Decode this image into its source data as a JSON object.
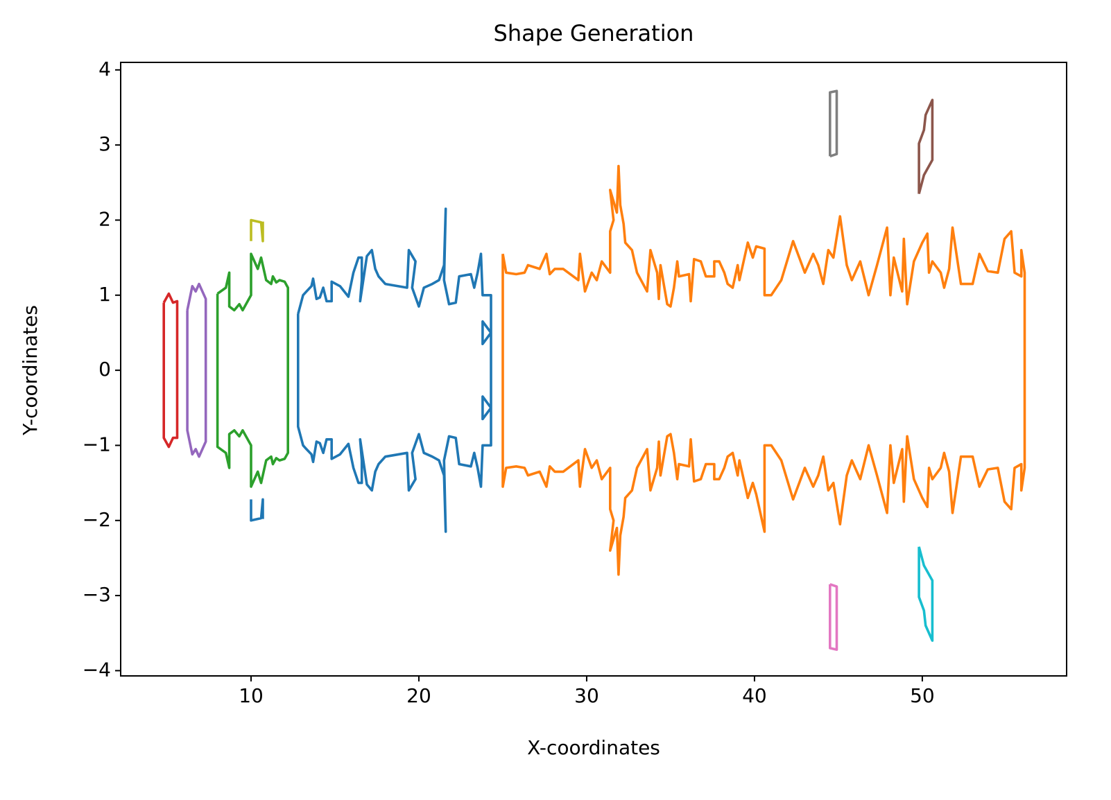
{
  "chart_data": {
    "type": "line",
    "title": "Shape Generation",
    "x_label": "X-coordinates",
    "y_label": "Y-coordinates",
    "xlim": [
      2.23,
      58.6
    ],
    "ylim": [
      -4.07,
      4.1
    ],
    "xticks": [
      10,
      20,
      30,
      40,
      50
    ],
    "yticks": [
      {
        "value": -4,
        "label": "−4"
      },
      {
        "value": -3,
        "label": "−3"
      },
      {
        "value": -2,
        "label": "−2"
      },
      {
        "value": -1,
        "label": "−1"
      },
      0,
      1,
      2,
      3,
      4
    ],
    "grid": false,
    "series": [
      {
        "color": "#1f77b4",
        "x": [
          12.8,
          13.1,
          13.3,
          13.6,
          13.7,
          13.9,
          14.1,
          14.3,
          14.5,
          14.8,
          14.8,
          15.3,
          15.8,
          16.1,
          16.4,
          16.6,
          16.6,
          16.5,
          16.9,
          17.2,
          17.4,
          17.6,
          18.0,
          19.3,
          19.4,
          19.8,
          19.6,
          20.0,
          20.3,
          20.8,
          21.2,
          21.5,
          21.6,
          21.5,
          21.8,
          22.2,
          22.4,
          23.1,
          23.3,
          23.5,
          23.7,
          23.8,
          24.3,
          24.3,
          23.8,
          23.8,
          24.3,
          24.3,
          23.8,
          23.8,
          24.3,
          24.3,
          23.8,
          23.7,
          23.5,
          23.3,
          23.1,
          22.4,
          22.2,
          21.8,
          21.5,
          21.6,
          21.5,
          21.2,
          20.8,
          20.3,
          20.0,
          19.6,
          19.8,
          19.4,
          19.3,
          18.0,
          17.6,
          17.4,
          17.2,
          16.9,
          16.5,
          16.6,
          16.6,
          16.4,
          16.1,
          15.8,
          15.3,
          14.8,
          14.8,
          14.5,
          14.3,
          14.1,
          13.9,
          13.7,
          13.6,
          13.3,
          13.1,
          12.8,
          12.8,
          null,
          10,
          10,
          10.6,
          10.7,
          10.7
        ],
        "values": [
          0.75,
          1.0,
          1.05,
          1.12,
          1.22,
          0.95,
          0.97,
          1.1,
          0.92,
          0.92,
          1.18,
          1.12,
          0.98,
          1.3,
          1.5,
          1.5,
          1.2,
          0.92,
          1.52,
          1.6,
          1.35,
          1.25,
          1.15,
          1.1,
          1.6,
          1.45,
          1.1,
          0.85,
          1.1,
          1.15,
          1.2,
          1.4,
          2.15,
          1.2,
          0.88,
          0.9,
          1.25,
          1.28,
          1.1,
          1.3,
          1.55,
          1.0,
          1.0,
          0.5,
          0.65,
          0.35,
          0.5,
          -0.5,
          -0.35,
          -0.65,
          -0.5,
          -1.0,
          -1.0,
          -1.55,
          -1.3,
          -1.1,
          -1.28,
          -1.25,
          -0.9,
          -0.88,
          -1.2,
          -2.15,
          -1.4,
          -1.2,
          -1.15,
          -1.1,
          -0.85,
          -1.1,
          -1.45,
          -1.6,
          -1.1,
          -1.15,
          -1.25,
          -1.35,
          -1.6,
          -1.52,
          -0.92,
          -1.2,
          -1.5,
          -1.5,
          -1.3,
          -0.98,
          -1.12,
          -1.18,
          -0.92,
          -0.92,
          -1.1,
          -0.97,
          -0.95,
          -1.22,
          -1.12,
          -1.05,
          -1.0,
          -0.75,
          0.75,
          null,
          -1.72,
          -2.0,
          -1.97,
          -1.72,
          -1.98
        ]
      },
      {
        "color": "#ff7f0e",
        "x": [
          25.0,
          25.2,
          25.8,
          26.3,
          26.5,
          27.2,
          27.6,
          27.8,
          28.1,
          28.6,
          29.5,
          29.6,
          29.9,
          30.3,
          30.6,
          30.9,
          31.4,
          31.4,
          31.6,
          31.4,
          31.8,
          31.9,
          32.0,
          32.2,
          32.3,
          32.7,
          33.0,
          33.6,
          33.8,
          34.2,
          34.3,
          34.4,
          34.8,
          35.0,
          35.2,
          35.4,
          35.5,
          36.1,
          36.2,
          36.4,
          36.8,
          37.1,
          37.6,
          37.6,
          37.9,
          38.2,
          38.4,
          38.7,
          39.0,
          39.1,
          39.6,
          39.9,
          40.1,
          40.6,
          40.6,
          41.0,
          41.6,
          42.3,
          42.7,
          43.0,
          43.5,
          43.8,
          44.1,
          44.4,
          44.7,
          45.1,
          45.5,
          45.8,
          46.3,
          46.8,
          47.3,
          47.9,
          48.1,
          48.3,
          48.8,
          48.9,
          49.1,
          49.5,
          50.0,
          50.3,
          50.4,
          50.6,
          51.1,
          51.3,
          51.6,
          51.8,
          52.3,
          53.0,
          53.4,
          53.9,
          54.5,
          54.9,
          55.3,
          55.5,
          55.9,
          55.9,
          56.1,
          56.1,
          55.9,
          55.9,
          55.5,
          55.3,
          54.9,
          54.5,
          53.9,
          53.4,
          53.0,
          52.3,
          51.8,
          51.6,
          51.3,
          51.1,
          50.6,
          50.4,
          50.3,
          50.0,
          49.5,
          49.1,
          48.9,
          48.8,
          48.3,
          48.1,
          47.9,
          47.3,
          46.8,
          46.3,
          45.8,
          45.5,
          45.1,
          44.7,
          44.4,
          44.1,
          43.8,
          43.5,
          43.0,
          42.7,
          42.3,
          41.6,
          41.0,
          40.6,
          40.6,
          40.1,
          39.9,
          39.6,
          39.1,
          39.0,
          38.7,
          38.4,
          38.2,
          37.9,
          37.6,
          37.6,
          37.1,
          36.8,
          36.4,
          36.2,
          36.1,
          35.5,
          35.4,
          35.2,
          35.0,
          34.8,
          34.4,
          34.3,
          34.2,
          33.8,
          33.6,
          33.0,
          32.7,
          32.3,
          32.2,
          32.0,
          31.9,
          31.8,
          31.4,
          31.6,
          31.4,
          31.4,
          30.9,
          30.6,
          30.3,
          29.9,
          29.6,
          29.5,
          28.6,
          28.1,
          27.8,
          27.6,
          27.2,
          26.5,
          26.3,
          25.8,
          25.2,
          25.0,
          25.0
        ],
        "values": [
          1.55,
          1.3,
          1.28,
          1.3,
          1.4,
          1.35,
          1.55,
          1.28,
          1.35,
          1.35,
          1.2,
          1.55,
          1.05,
          1.3,
          1.2,
          1.45,
          1.3,
          1.85,
          2.0,
          2.4,
          2.1,
          2.72,
          2.2,
          1.95,
          1.7,
          1.6,
          1.3,
          1.05,
          1.6,
          1.3,
          0.95,
          1.4,
          0.88,
          0.85,
          1.1,
          1.45,
          1.25,
          1.28,
          0.92,
          1.48,
          1.45,
          1.25,
          1.25,
          1.45,
          1.45,
          1.3,
          1.15,
          1.1,
          1.4,
          1.2,
          1.7,
          1.5,
          1.65,
          1.62,
          1.0,
          1.0,
          1.2,
          1.72,
          1.48,
          1.3,
          1.55,
          1.4,
          1.15,
          1.6,
          1.5,
          2.05,
          1.4,
          1.2,
          1.45,
          1.0,
          1.4,
          1.9,
          1.0,
          1.5,
          1.05,
          1.75,
          0.88,
          1.45,
          1.7,
          1.82,
          1.3,
          1.45,
          1.3,
          1.1,
          1.35,
          1.9,
          1.15,
          1.15,
          1.55,
          1.32,
          1.3,
          1.75,
          1.85,
          1.3,
          1.25,
          1.6,
          1.3,
          -1.3,
          -1.6,
          -1.25,
          -1.3,
          -1.85,
          -1.75,
          -1.3,
          -1.32,
          -1.55,
          -1.15,
          -1.15,
          -1.9,
          -1.35,
          -1.1,
          -1.3,
          -1.45,
          -1.3,
          -1.82,
          -1.7,
          -1.45,
          -0.88,
          -1.75,
          -1.05,
          -1.5,
          -1.0,
          -1.9,
          -1.4,
          -1.0,
          -1.45,
          -1.2,
          -1.4,
          -2.05,
          -1.5,
          -1.6,
          -1.15,
          -1.4,
          -1.55,
          -1.3,
          -1.48,
          -1.72,
          -1.2,
          -1.0,
          -1.0,
          -2.15,
          -1.65,
          -1.5,
          -1.7,
          -1.2,
          -1.4,
          -1.1,
          -1.15,
          -1.3,
          -1.45,
          -1.45,
          -1.25,
          -1.25,
          -1.45,
          -1.48,
          -0.92,
          -1.28,
          -1.25,
          -1.45,
          -1.1,
          -0.85,
          -0.88,
          -1.4,
          -0.95,
          -1.3,
          -1.6,
          -1.05,
          -1.3,
          -1.6,
          -1.7,
          -1.95,
          -2.2,
          -2.72,
          -2.1,
          -2.4,
          -2.0,
          -1.85,
          -1.3,
          -1.45,
          -1.2,
          -1.3,
          -1.05,
          -1.55,
          -1.2,
          -1.35,
          -1.35,
          -1.28,
          -1.55,
          -1.35,
          -1.4,
          -1.3,
          -1.28,
          -1.3,
          -1.55,
          1.55
        ]
      },
      {
        "color": "#2ca02c",
        "x": [
          8,
          8.5,
          8.7,
          8.7,
          9,
          9.3,
          9.5,
          10,
          10,
          10.4,
          10.6,
          10.9,
          11.2,
          11.3,
          11.5,
          11.7,
          12,
          12.2,
          12.2,
          12,
          11.7,
          11.5,
          11.3,
          11.2,
          10.9,
          10.6,
          10.4,
          10,
          10,
          9.5,
          9.3,
          9,
          8.7,
          8.7,
          8.5,
          8,
          8
        ],
        "values": [
          1.02,
          1.1,
          1.3,
          0.85,
          0.8,
          0.88,
          0.8,
          1.0,
          1.55,
          1.35,
          1.5,
          1.2,
          1.15,
          1.25,
          1.17,
          1.2,
          1.18,
          1.1,
          -1.1,
          -1.18,
          -1.2,
          -1.17,
          -1.25,
          -1.15,
          -1.2,
          -1.5,
          -1.35,
          -1.55,
          -1.0,
          -0.8,
          -0.88,
          -0.8,
          -0.85,
          -1.3,
          -1.1,
          -1.02,
          1.02
        ]
      },
      {
        "color": "#d62728",
        "x": [
          4.8,
          5.1,
          5.35,
          5.6,
          5.6,
          5.35,
          5.1,
          4.8,
          4.8
        ],
        "values": [
          0.9,
          1.02,
          0.9,
          0.92,
          -0.9,
          -0.9,
          -1.02,
          -0.9,
          0.9
        ]
      },
      {
        "color": "#9467bd",
        "x": [
          6.2,
          6.5,
          6.7,
          6.9,
          7.3,
          7.3,
          6.9,
          6.7,
          6.5,
          6.2,
          6.2
        ],
        "values": [
          0.8,
          1.12,
          1.05,
          1.15,
          0.95,
          -0.95,
          -1.15,
          -1.05,
          -1.12,
          -0.8,
          0.8
        ]
      },
      {
        "color": "#8c564b",
        "x": [
          49.8,
          50.1,
          50.6,
          50.6,
          50.2,
          50.1,
          49.8,
          49.8
        ],
        "values": [
          2.35,
          2.6,
          2.8,
          3.6,
          3.4,
          3.2,
          3.02,
          2.35
        ]
      },
      {
        "color": "#e377c2",
        "x": [
          44.5,
          44.5,
          44.9,
          44.9,
          44.5
        ],
        "values": [
          -2.85,
          -3.7,
          -3.72,
          -2.88,
          -2.85
        ]
      },
      {
        "color": "#7f7f7f",
        "x": [
          44.5,
          44.5,
          44.9,
          44.9,
          44.5
        ],
        "values": [
          2.85,
          3.7,
          3.72,
          2.88,
          2.85
        ]
      },
      {
        "color": "#bcbd22",
        "x": [
          10,
          10,
          10.6,
          10.7,
          10.7
        ],
        "values": [
          1.72,
          2.0,
          1.97,
          1.72,
          1.98
        ]
      },
      {
        "color": "#17becf",
        "x": [
          49.8,
          50.1,
          50.6,
          50.6,
          50.2,
          50.1,
          49.8,
          49.8
        ],
        "values": [
          -2.35,
          -2.6,
          -2.8,
          -3.6,
          -3.4,
          -3.2,
          -3.02,
          -2.35
        ]
      }
    ]
  }
}
